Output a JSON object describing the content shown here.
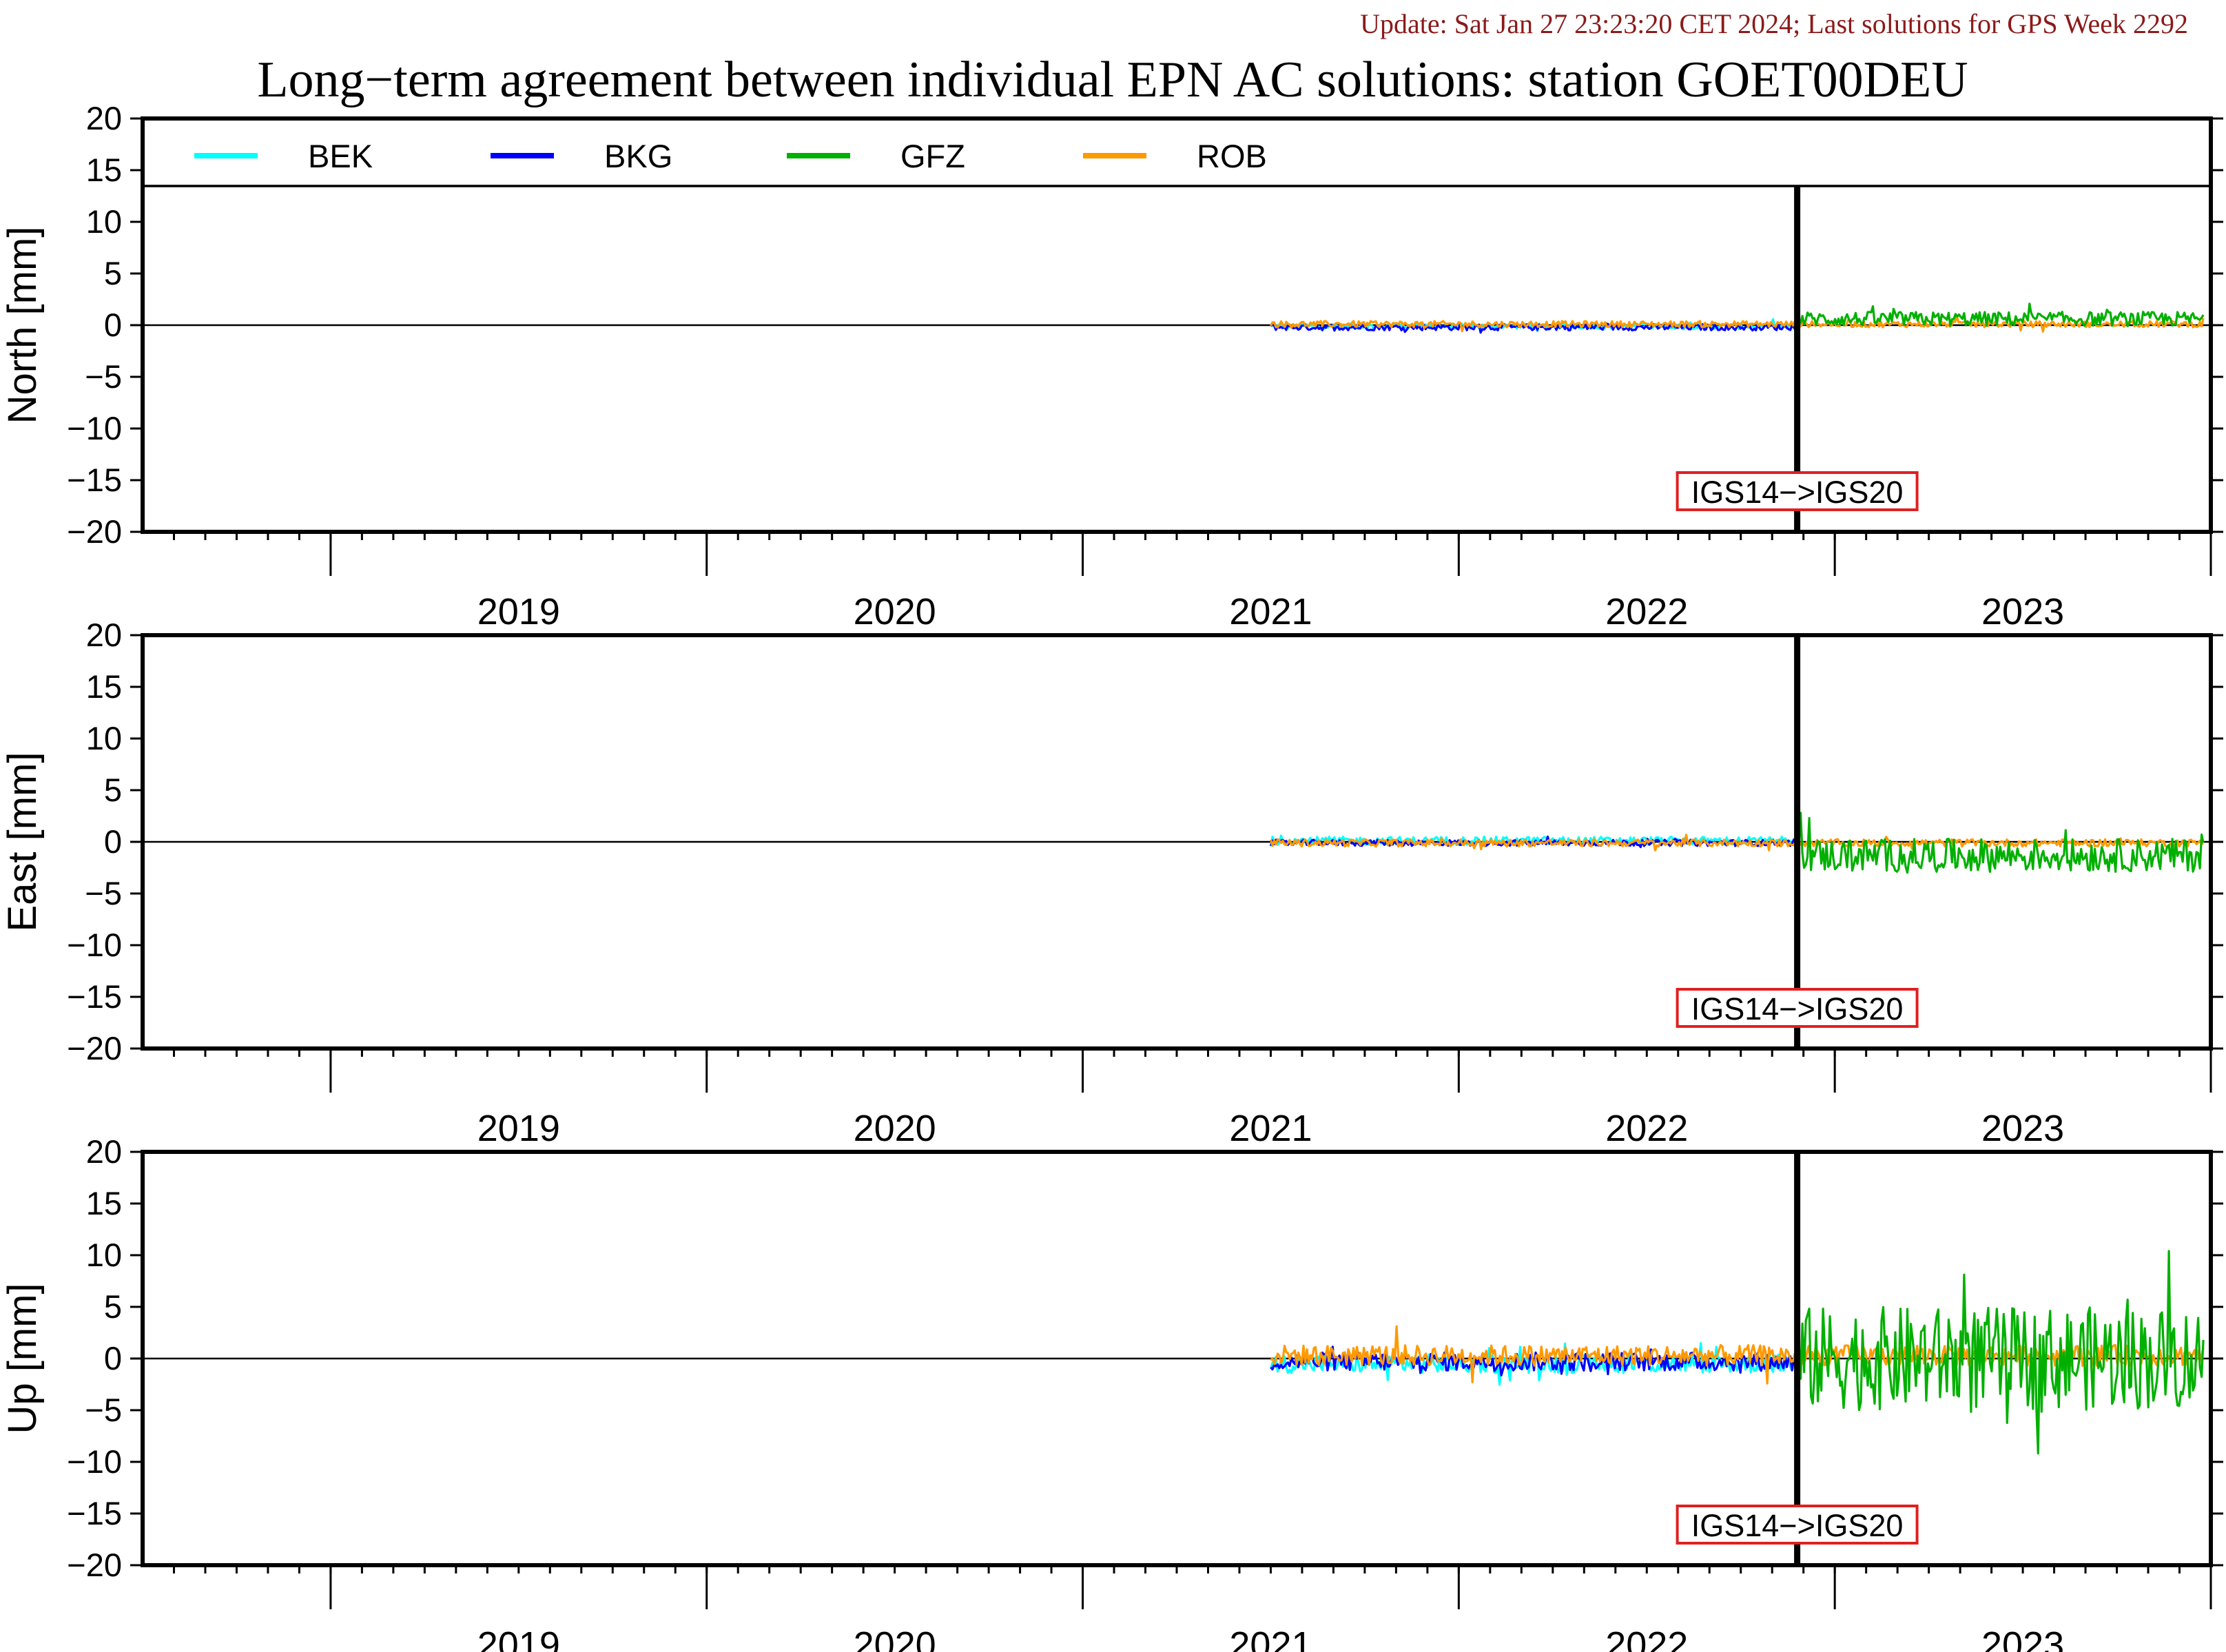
{
  "update_text": "Update: Sat Jan 27 23:23:20 CET 2024; Last solutions for GPS Week 2292",
  "update_color": "#8b1a1a",
  "chart_data": {
    "type": "line",
    "title": "Long−term agreement between individual EPN AC solutions: station GOET00DEU",
    "x_axis": {
      "unit": "year",
      "range": [
        2018.5,
        2024.0
      ],
      "year_labels": [
        "2019",
        "2020",
        "2021",
        "2022",
        "2023"
      ],
      "minor_ticks_per_year": 12
    },
    "y_axis": {
      "range": [
        -20,
        20
      ],
      "ticks": [
        20,
        15,
        10,
        5,
        0,
        -5,
        -10,
        -15,
        -20
      ],
      "tick_labels": [
        "20",
        "15",
        "10",
        "5",
        "0",
        "−5",
        "−10",
        "−15",
        "−20"
      ]
    },
    "legend": {
      "placement": "top-left-row",
      "entries": [
        {
          "name": "BEK",
          "color": "#00ffff"
        },
        {
          "name": "BKG",
          "color": "#0000ff"
        },
        {
          "name": "GFZ",
          "color": "#00b000"
        },
        {
          "name": "ROB",
          "color": "#ff9900"
        }
      ]
    },
    "event": {
      "x": 2022.9,
      "label": "IGS14−>IGS20",
      "box_color": "#e02020"
    },
    "panels": [
      {
        "ylabel": "North [mm]",
        "series": [
          {
            "name": "BEK",
            "color": "#00ffff",
            "start": 2021.5,
            "end": 2022.9,
            "mean": -0.1,
            "amp": 0.25
          },
          {
            "name": "BKG",
            "color": "#0000ff",
            "start": 2021.5,
            "end": 2022.9,
            "mean": -0.2,
            "amp": 0.3
          },
          {
            "name": "ROB",
            "color": "#ff9900",
            "start": 2021.5,
            "end": 2023.98,
            "mean": 0.1,
            "amp": 0.3
          },
          {
            "name": "GFZ",
            "color": "#00b000",
            "start": 2022.9,
            "end": 2023.98,
            "mean": 0.6,
            "amp": 0.7
          }
        ]
      },
      {
        "ylabel": "East [mm]",
        "series": [
          {
            "name": "BEK",
            "color": "#00ffff",
            "start": 2021.5,
            "end": 2022.9,
            "mean": 0.1,
            "amp": 0.4
          },
          {
            "name": "BKG",
            "color": "#0000ff",
            "start": 2021.5,
            "end": 2022.9,
            "mean": -0.1,
            "amp": 0.3
          },
          {
            "name": "ROB",
            "color": "#ff9900",
            "start": 2021.5,
            "end": 2023.98,
            "mean": -0.1,
            "amp": 0.35
          },
          {
            "name": "GFZ",
            "color": "#00b000",
            "start": 2022.9,
            "end": 2023.98,
            "mean": -1.3,
            "amp": 1.6
          }
        ]
      },
      {
        "ylabel": "Up [mm]",
        "series": [
          {
            "name": "BEK",
            "color": "#00ffff",
            "start": 2021.5,
            "end": 2022.9,
            "mean": -0.5,
            "amp": 0.9
          },
          {
            "name": "BKG",
            "color": "#0000ff",
            "start": 2021.5,
            "end": 2022.9,
            "mean": -0.3,
            "amp": 0.9
          },
          {
            "name": "ROB",
            "color": "#ff9900",
            "start": 2021.5,
            "end": 2023.98,
            "mean": 0.3,
            "amp": 1.0
          },
          {
            "name": "GFZ",
            "color": "#00b000",
            "start": 2022.9,
            "end": 2023.98,
            "mean": 0.0,
            "amp": 5.0
          }
        ]
      }
    ]
  }
}
